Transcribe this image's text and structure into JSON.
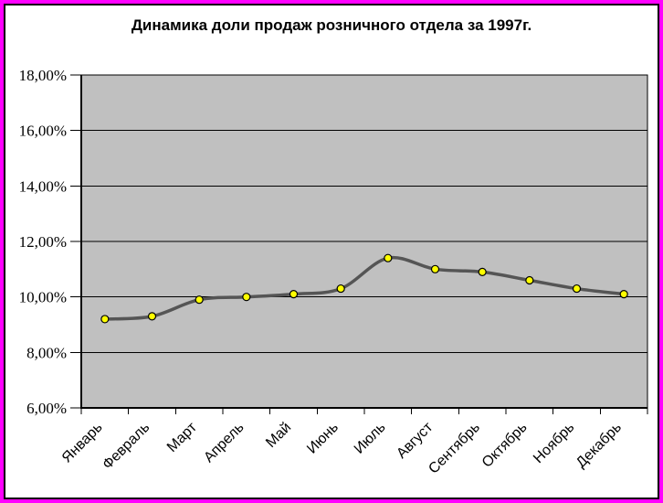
{
  "frame": {
    "border_color": "#FF00FF",
    "inner_border_color": "#000000",
    "background": "#FFFFFF"
  },
  "chart_data": {
    "type": "line",
    "title": "Динамика доли продаж розничного отдела за 1997г.",
    "categories": [
      "Январь",
      "Февраль",
      "Март",
      "Апрель",
      "Май",
      "Июнь",
      "Июль",
      "Август",
      "Сентябрь",
      "Октябрь",
      "Ноябрь",
      "Декабрь"
    ],
    "values": [
      9.2,
      9.3,
      9.9,
      10.0,
      10.1,
      10.3,
      11.4,
      11.0,
      10.9,
      10.6,
      10.3,
      10.1
    ],
    "unit": "%",
    "xlabel": "",
    "ylabel": "",
    "ylim": [
      6,
      18
    ],
    "ytick_step": 2,
    "ytick_labels": [
      "18,00%",
      "16,00%",
      "14,00%",
      "12,00%",
      "10,00%",
      "8,00%",
      "6,00%"
    ],
    "decimal_separator": ",",
    "grid": true,
    "legend": false,
    "smoothed_line": true,
    "marker": "circle",
    "colors": {
      "plot_bg": "#C0C0C0",
      "line": "#555555",
      "marker_fill": "#FFFF00",
      "marker_stroke": "#000000",
      "grid": "#000000",
      "axis": "#000000",
      "text": "#000000",
      "frame": "#FF00FF",
      "background": "#FFFFFF"
    }
  }
}
